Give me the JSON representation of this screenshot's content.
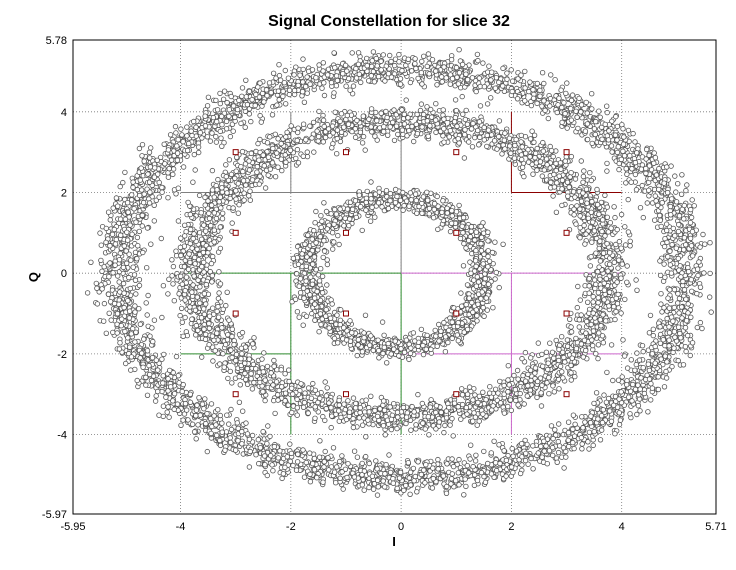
{
  "chart_data": {
    "type": "scatter",
    "title": "Signal Constellation for slice 32",
    "xlabel": "I",
    "ylabel": "Q",
    "xlim": [
      -5.95,
      5.71
    ],
    "ylim": [
      -5.97,
      5.78
    ],
    "x_ticks": [
      "-5.95",
      "-4",
      "-2",
      "0",
      "2",
      "4",
      "5.71"
    ],
    "y_ticks": [
      "5.78",
      "4",
      "2",
      "0",
      "-2",
      "-4",
      "-5.97"
    ],
    "x_tick_values": [
      -5.95,
      -4,
      -2,
      0,
      2,
      4,
      5.71
    ],
    "y_tick_values": [
      5.78,
      4,
      2,
      0,
      -2,
      -4,
      -5.97
    ],
    "grid": true,
    "legend": "none",
    "colors": {
      "samples": "#555555",
      "ideal_points": "#8b0000",
      "sector_upper_left": "#808080",
      "sector_upper_right": "#8b0000",
      "sector_lower_left": "#2e8b2e",
      "sector_lower_right": "#cc66cc"
    },
    "series": [
      {
        "kind": "received-samples-rings",
        "rings": [
          {
            "center": [
              -0.1,
              0.0
            ],
            "rx": 1.6,
            "ry": 1.85,
            "spread": 0.14,
            "count": 1400
          },
          {
            "center": [
              0.0,
              0.1
            ],
            "rx": 3.75,
            "ry": 3.65,
            "spread": 0.2,
            "count": 3000
          },
          {
            "center": [
              0.0,
              0.0
            ],
            "rx": 5.15,
            "ry": 5.05,
            "spread": 0.2,
            "count": 3600
          }
        ]
      },
      {
        "kind": "ideal-constellation-points",
        "points": [
          [
            -3,
            3
          ],
          [
            -1,
            3
          ],
          [
            1,
            3
          ],
          [
            3,
            3
          ],
          [
            -3,
            1
          ],
          [
            -1,
            1
          ],
          [
            1,
            1
          ],
          [
            3,
            1
          ],
          [
            -3,
            -1
          ],
          [
            -1,
            -1
          ],
          [
            1,
            -1
          ],
          [
            3,
            -1
          ],
          [
            -3,
            -3
          ],
          [
            -1,
            -3
          ],
          [
            1,
            -3
          ],
          [
            3,
            -3
          ]
        ]
      }
    ]
  }
}
